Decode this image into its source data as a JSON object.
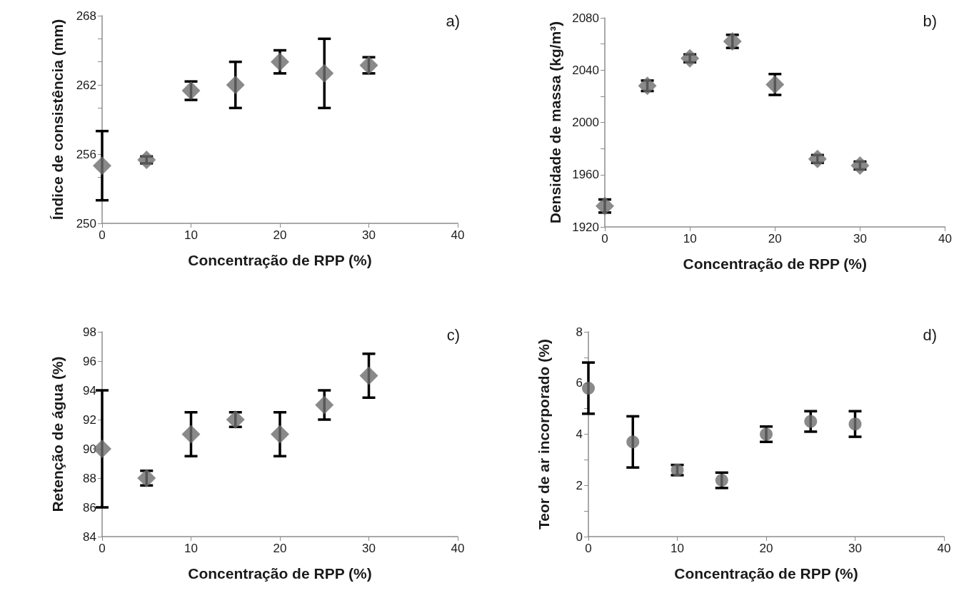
{
  "chart_data": [
    {
      "type": "scatter",
      "annotations": [
        "a)"
      ],
      "xlabel": "Concentração de RPP (%)",
      "ylabel": "Índice de consistência (mm)",
      "marker": "diamond",
      "xlim": [
        0,
        40
      ],
      "xticks": [
        0,
        10,
        20,
        30,
        40
      ],
      "ylim": [
        250,
        268
      ],
      "yticks": [
        250,
        {
          "value": 252,
          "label": null
        },
        {
          "value": 254,
          "label": null
        },
        256,
        {
          "value": 258,
          "label": null
        },
        {
          "value": 260,
          "label": null
        },
        262,
        {
          "value": 264,
          "label": null
        },
        {
          "value": 266,
          "label": null
        },
        268
      ],
      "x": [
        0,
        5,
        10,
        15,
        20,
        25,
        30
      ],
      "series": [
        {
          "color": "#6d6d6d",
          "values": [
            255.0,
            255.5,
            261.5,
            262.0,
            264.0,
            263.0,
            263.7
          ],
          "errors": [
            3,
            0.3,
            0.8,
            2,
            1,
            3,
            0.7
          ]
        }
      ]
    },
    {
      "type": "scatter",
      "annotations": [
        "b)"
      ],
      "xlabel": "Concentração de RPP (%)",
      "ylabel": "Densidade de massa (kg/m³)",
      "marker": "diamond",
      "xlim": [
        0,
        40
      ],
      "xticks": [
        0,
        10,
        20,
        30,
        40
      ],
      "ylim": [
        1920,
        2080
      ],
      "yticks": [
        1920,
        {
          "value": 1940,
          "label": null
        },
        1960,
        {
          "value": 1980,
          "label": null
        },
        2000,
        {
          "value": 2020,
          "label": null
        },
        2040,
        {
          "value": 2060,
          "label": null
        },
        2080
      ],
      "x": [
        0,
        5,
        10,
        15,
        20,
        25,
        30
      ],
      "series": [
        {
          "color": "#6d6d6d",
          "values": [
            1936,
            2028,
            2049,
            2062,
            2029,
            1972,
            1967
          ],
          "errors": [
            5,
            4,
            3,
            5,
            8,
            3,
            3
          ]
        }
      ]
    },
    {
      "type": "scatter",
      "annotations": [
        "c)"
      ],
      "xlabel": "Concentração de RPP (%)",
      "ylabel": "Retenção de água (%)",
      "marker": "diamond",
      "xlim": [
        0,
        40
      ],
      "xticks": [
        0,
        10,
        20,
        30,
        40
      ],
      "ylim": [
        84,
        98
      ],
      "yticks": [
        84,
        86,
        88,
        90,
        92,
        94,
        96,
        98
      ],
      "x": [
        0,
        5,
        10,
        15,
        20,
        25,
        30
      ],
      "series": [
        {
          "color": "#6d6d6d",
          "values": [
            90.0,
            88.0,
            91.0,
            92.0,
            91.0,
            93.0,
            95.0
          ],
          "errors": [
            4,
            0.5,
            1.5,
            0.5,
            1.5,
            1,
            1.5
          ]
        }
      ]
    },
    {
      "type": "scatter",
      "annotations": [
        "d)"
      ],
      "xlabel": "Concentração de RPP (%)",
      "ylabel": "Teor de ar incorporado (%)",
      "marker": "circle",
      "xlim": [
        0,
        40
      ],
      "xticks": [
        0,
        10,
        20,
        30,
        40
      ],
      "ylim": [
        0,
        8
      ],
      "yticks": [
        0,
        {
          "value": 1,
          "label": null
        },
        2,
        {
          "value": 3,
          "label": null
        },
        4,
        {
          "value": 5,
          "label": null
        },
        6,
        {
          "value": 7,
          "label": null
        },
        8
      ],
      "x": [
        0,
        5,
        10,
        15,
        20,
        25,
        30
      ],
      "series": [
        {
          "color": "#6d6d6d",
          "values": [
            5.8,
            3.7,
            2.6,
            2.2,
            4.0,
            4.5,
            4.4
          ],
          "errors": [
            1,
            1,
            0.2,
            0.3,
            0.3,
            0.4,
            0.5
          ]
        }
      ]
    }
  ]
}
